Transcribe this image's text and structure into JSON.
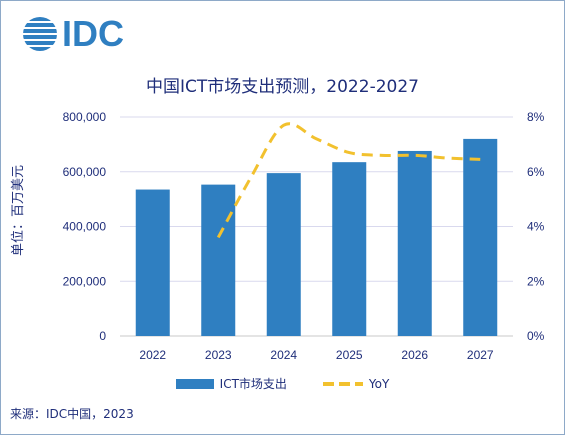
{
  "logo": {
    "text": "IDC"
  },
  "footer": {
    "source": "来源：IDC中国，2023"
  },
  "colors": {
    "bar": "#2f7fc1",
    "line": "#f2c12e",
    "text": "#1f2e7a",
    "grid": "#d9d9ee"
  },
  "chart_data": {
    "type": "bar",
    "title": "中国ICT市场支出预测，2022-2027",
    "ylabel": "单位：百万美元",
    "categories": [
      "2022",
      "2023",
      "2024",
      "2025",
      "2026",
      "2027"
    ],
    "series": [
      {
        "name": "ICT市场支出",
        "type": "bar",
        "axis": "left",
        "values": [
          535000,
          553000,
          595000,
          635000,
          676000,
          720000
        ]
      },
      {
        "name": "YoY",
        "type": "line",
        "style": "dashed",
        "axis": "right",
        "x": [
          2023,
          2023.5,
          2024,
          2024.5,
          2025,
          2025.5,
          2026,
          2026.5,
          2027
        ],
        "values": [
          3.6,
          5.8,
          7.7,
          7.2,
          6.7,
          6.6,
          6.6,
          6.5,
          6.45
        ]
      }
    ],
    "yticks_left": [
      "0",
      "200,000",
      "400,000",
      "600,000",
      "800,000"
    ],
    "yticks_right": [
      "0%",
      "2%",
      "4%",
      "6%",
      "8%"
    ],
    "ylim": [
      0,
      800000
    ],
    "ylim_right": [
      0,
      8
    ],
    "grid": true,
    "legend_position": "bottom"
  }
}
